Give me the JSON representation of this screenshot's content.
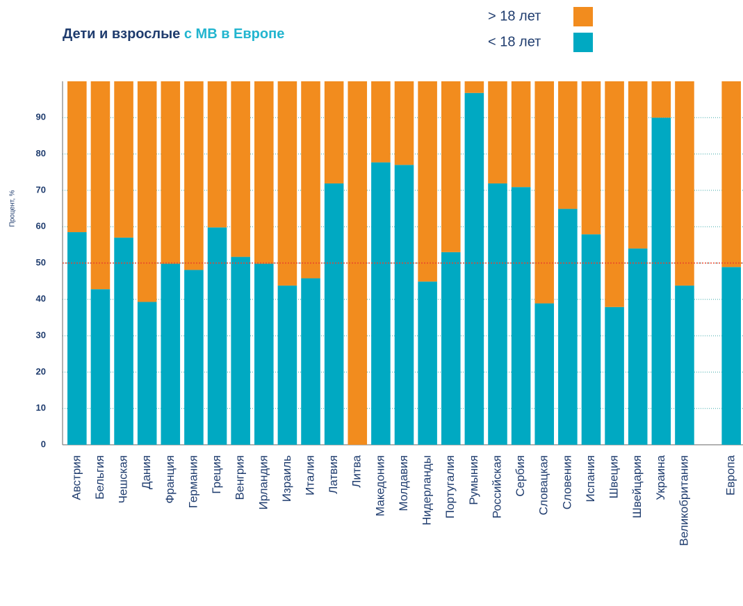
{
  "chart_data": {
    "type": "stacked_bar",
    "title": "Дети и взрослые",
    "title_highlight": "с МВ в Европе",
    "y_label": "Процент, %",
    "categories": [
      "Австрия",
      "Бельгия",
      "Чешская",
      "Дания",
      "Франция",
      "Германия",
      "Греция",
      "Венгрия",
      "Ирландия",
      "Израиль",
      "Италия",
      "Латвия",
      "Литва",
      "Македония",
      "Молдавия",
      "Нидерланды",
      "Португалия",
      "Румыния",
      "Российская",
      "Сербия",
      "Словацкая",
      "Словения",
      "Испания",
      "Швеция",
      "Швейцария",
      "Украина",
      "Великобритания",
      null,
      "Европа"
    ],
    "series": [
      {
        "name": "< 18 лет",
        "color": "#00a9c2",
        "values": [
          58.5,
          42.8,
          57,
          39.3,
          49.8,
          48.1,
          59.8,
          51.7,
          49.8,
          43.8,
          45.8,
          71.9,
          0,
          77.7,
          77,
          44.9,
          53,
          96.8,
          71.9,
          70.9,
          38.9,
          64.9,
          57.9,
          37.9,
          54,
          90,
          43.8,
          null,
          48.9
        ]
      },
      {
        "name": "> 18 лет",
        "color": "#f28c1e",
        "values": [
          41.5,
          57.2,
          43,
          60.7,
          50.2,
          51.9,
          40.2,
          48.3,
          50.2,
          56.2,
          54.2,
          28.1,
          100,
          22.3,
          23,
          55.1,
          47,
          3.2,
          28.1,
          29.1,
          61.1,
          35.1,
          42.1,
          62.1,
          46,
          10,
          56.2,
          null,
          51.1
        ]
      }
    ],
    "ylim": [
      0,
      100
    ],
    "yticks": [
      0,
      10,
      20,
      30,
      40,
      50,
      60,
      70,
      80,
      90
    ],
    "grid": true,
    "reference_line": {
      "value": 50,
      "color": "#e8432b"
    },
    "legend": "top-right"
  }
}
